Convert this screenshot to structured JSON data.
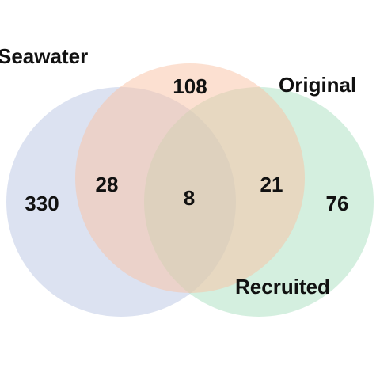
{
  "sets": [
    {
      "id": "seawater",
      "label": "Seawater",
      "color": "#b9c6e4"
    },
    {
      "id": "recruited",
      "label": "Recruited",
      "color": "#a9dfc0"
    },
    {
      "id": "original",
      "label": "Original",
      "color": "#f9c2a4"
    }
  ],
  "regions": {
    "seawater_only": "330",
    "seawater_original": "28",
    "original_only": "108",
    "all_three": "8",
    "original_recruited": "21",
    "recruited_only": "76"
  }
}
